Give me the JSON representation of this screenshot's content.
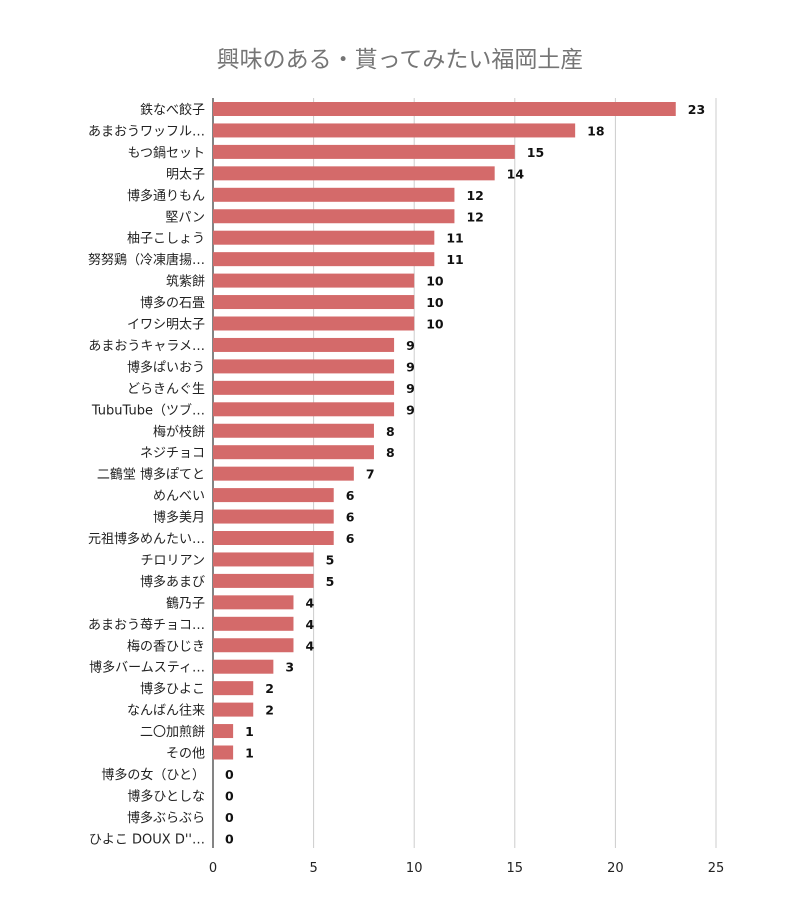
{
  "chart_data": {
    "type": "bar",
    "orientation": "horizontal",
    "title": "興味のある・貰ってみたい福岡土産",
    "xlabel": "",
    "ylabel": "",
    "xlim": [
      0,
      25
    ],
    "ticks": [
      "0",
      "5",
      "10",
      "15",
      "20",
      "25"
    ],
    "grid": true,
    "legend": "none",
    "bar_color": "#d46a6a",
    "categories": [
      "鉄なべ餃子",
      "あまおうワッフル…",
      "もつ鍋セット",
      "明太子",
      "博多通りもん",
      "堅パン",
      "柚子こしょう",
      "努努鶏（冷凍唐揚…",
      "筑紫餅",
      "博多の石畳",
      "イワシ明太子",
      "あまおうキャラメ…",
      "博多ぱいおう",
      "どらきんぐ生",
      "TubuTube（ツブ…",
      "梅が枝餅",
      "ネジチョコ",
      "二鶴堂 博多ぽてと",
      "めんべい",
      "博多美月",
      "元祖博多めんたい…",
      "チロリアン",
      "博多あまび",
      "鶴乃子",
      "あまおう苺チョコ…",
      "梅の香ひじき",
      "博多バームスティ…",
      "博多ひよこ",
      "なんばん往来",
      "二〇加煎餅",
      "その他",
      "博多の女（ひと）",
      "博多ひとしな",
      "博多ぶらぶら",
      "ひよこ DOUX D''…"
    ],
    "values": [
      23,
      18,
      15,
      14,
      12,
      12,
      11,
      11,
      10,
      10,
      10,
      9,
      9,
      9,
      9,
      8,
      8,
      7,
      6,
      6,
      6,
      5,
      5,
      4,
      4,
      4,
      3,
      2,
      2,
      1,
      1,
      0,
      0,
      0,
      0
    ]
  }
}
